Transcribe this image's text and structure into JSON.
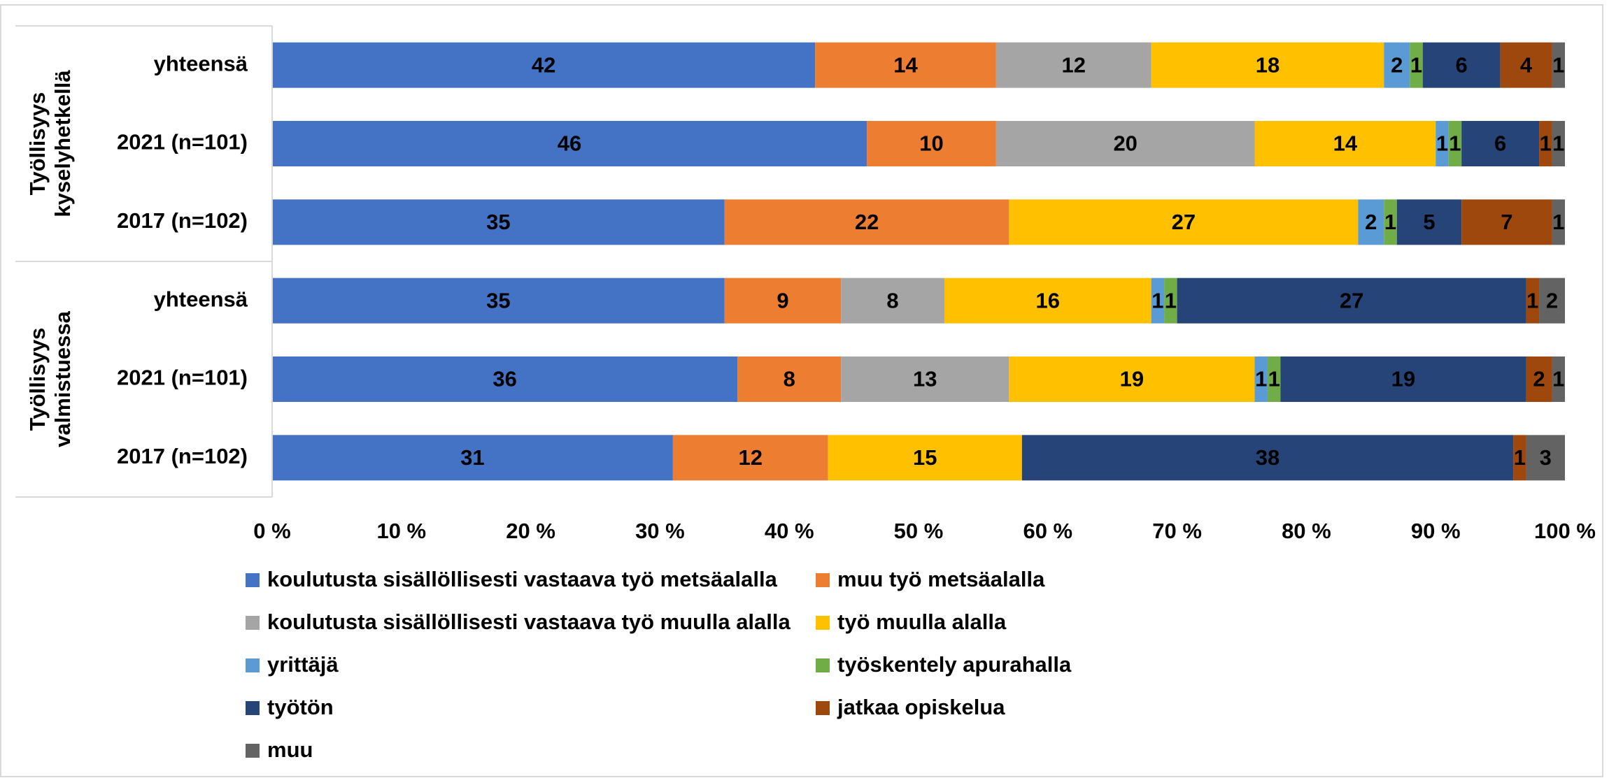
{
  "chart_data": {
    "type": "stacked-bar-horizontal-100",
    "categories": [
      "yhteensä",
      "2021 (n=101)",
      "2017 (n=102)",
      "yhteensä",
      "2021 (n=101)",
      "2017 (n=102)"
    ],
    "groups": [
      {
        "lines": [
          "Työllisyys",
          "kyselyhetkellä"
        ]
      },
      {
        "lines": [
          "Työllisyys",
          "valmistuessa"
        ]
      }
    ],
    "series": [
      {
        "name": "koulutusta sisällöllisesti vastaava työ metsäalalla",
        "color": "#4472c4",
        "values": [
          42,
          46,
          35,
          35,
          36,
          31
        ]
      },
      {
        "name": "muu työ metsäalalla",
        "color": "#ed7d31",
        "values": [
          14,
          10,
          22,
          9,
          8,
          12
        ]
      },
      {
        "name": "koulutusta sisällöllisesti vastaava työ muulla alalla",
        "color": "#a5a5a5",
        "values": [
          12,
          20,
          null,
          8,
          13,
          null
        ]
      },
      {
        "name": "työ muulla alalla",
        "color": "#ffc000",
        "values": [
          18,
          14,
          27,
          16,
          19,
          15
        ]
      },
      {
        "name": "yrittäjä",
        "color": "#5b9bd5",
        "values": [
          2,
          1,
          2,
          1,
          1,
          null
        ]
      },
      {
        "name": "työskentely apurahalla",
        "color": "#70ad47",
        "values": [
          1,
          1,
          1,
          1,
          1,
          null
        ]
      },
      {
        "name": "työtön",
        "color": "#264478",
        "values": [
          6,
          6,
          5,
          27,
          19,
          38
        ]
      },
      {
        "name": "jatkaa opiskelua",
        "color": "#9e480e",
        "values": [
          4,
          1,
          7,
          1,
          2,
          1
        ]
      },
      {
        "name": "muu",
        "color": "#636363",
        "values": [
          1,
          1,
          1,
          2,
          1,
          3
        ]
      }
    ],
    "xlim": [
      0,
      100
    ],
    "xticks": [
      {
        "value": 0,
        "label": "0 %"
      },
      {
        "value": 10,
        "label": "10 %"
      },
      {
        "value": 20,
        "label": "20 %"
      },
      {
        "value": 30,
        "label": "30 %"
      },
      {
        "value": 40,
        "label": "40 %"
      },
      {
        "value": 50,
        "label": "50 %"
      },
      {
        "value": 60,
        "label": "60 %"
      },
      {
        "value": 70,
        "label": "70 %"
      },
      {
        "value": 80,
        "label": "80 %"
      },
      {
        "value": 90,
        "label": "90 %"
      },
      {
        "value": 100,
        "label": "100 %"
      }
    ],
    "grid": false,
    "legend": "bottom"
  }
}
